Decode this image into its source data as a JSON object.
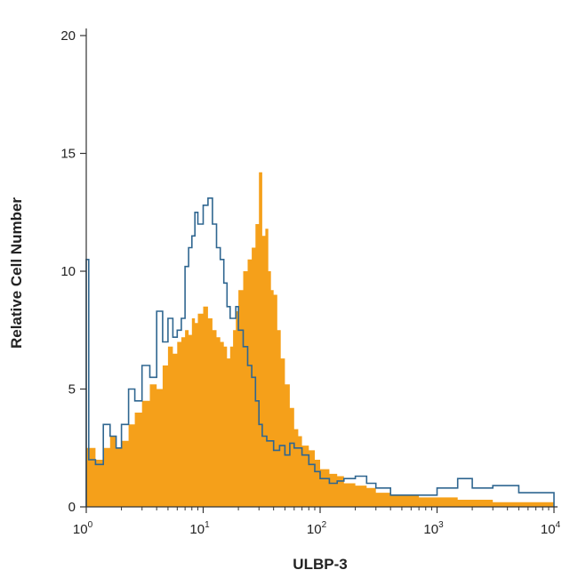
{
  "chart_data": {
    "type": "histogram",
    "xlabel": "ULBP-3",
    "ylabel": "Relative Cell Number",
    "x_scale": "log",
    "xlim": [
      1,
      10000
    ],
    "ylim": [
      0,
      20
    ],
    "x_ticks": [
      {
        "value": 1,
        "base": "10",
        "exp": "0"
      },
      {
        "value": 10,
        "base": "10",
        "exp": "1"
      },
      {
        "value": 100,
        "base": "10",
        "exp": "2"
      },
      {
        "value": 1000,
        "base": "10",
        "exp": "3"
      },
      {
        "value": 10000,
        "base": "10",
        "exp": "4"
      }
    ],
    "y_ticks": [
      {
        "value": 0,
        "label": "0"
      },
      {
        "value": 5,
        "label": "5"
      },
      {
        "value": 10,
        "label": "10"
      },
      {
        "value": 15,
        "label": "15"
      },
      {
        "value": 20,
        "label": "20"
      }
    ],
    "series": [
      {
        "style": "filled",
        "color": "#f5a01a",
        "x": [
          1,
          1.2,
          1.4,
          1.6,
          1.8,
          2,
          2.3,
          2.6,
          3,
          3.5,
          4,
          4.5,
          5,
          5.5,
          6,
          6.5,
          7,
          7.5,
          8,
          8.5,
          9,
          10,
          11,
          12,
          13,
          14,
          15,
          16,
          17,
          18,
          19,
          20,
          22,
          24,
          26,
          28,
          30,
          32,
          34,
          36,
          38,
          40,
          43,
          46,
          50,
          55,
          60,
          65,
          70,
          80,
          90,
          100,
          120,
          140,
          160,
          200,
          250,
          300,
          400,
          500,
          700,
          1000,
          1500,
          2000,
          3000,
          5000,
          10000
        ],
        "y": [
          2.5,
          2.0,
          2.5,
          3.0,
          2.5,
          2.8,
          3.5,
          4.0,
          4.5,
          5.2,
          5.0,
          6.0,
          6.8,
          6.5,
          7.0,
          7.2,
          7.5,
          7.3,
          8.0,
          7.8,
          8.2,
          8.5,
          8.0,
          7.5,
          7.2,
          7.0,
          6.8,
          6.3,
          6.8,
          7.5,
          8.3,
          9.2,
          10.0,
          10.5,
          11.0,
          12.0,
          14.2,
          11.5,
          11.8,
          10.0,
          9.2,
          9.0,
          7.5,
          6.3,
          5.2,
          4.2,
          3.3,
          3.0,
          2.6,
          2.4,
          2.0,
          1.6,
          1.4,
          1.3,
          1.0,
          0.9,
          0.8,
          0.6,
          0.5,
          0.5,
          0.4,
          0.4,
          0.3,
          0.3,
          0.2,
          0.2,
          0.2
        ]
      },
      {
        "style": "outline",
        "color": "#2f6690",
        "x": [
          1,
          1.05,
          1.2,
          1.4,
          1.6,
          1.8,
          2,
          2.3,
          2.6,
          3,
          3.5,
          4,
          4.5,
          5,
          5.5,
          6,
          6.5,
          7,
          7.5,
          8,
          8.5,
          9,
          10,
          11,
          12,
          13,
          14,
          15,
          16,
          17,
          18,
          19,
          20,
          22,
          24,
          26,
          28,
          30,
          32,
          35,
          40,
          45,
          50,
          55,
          60,
          70,
          80,
          90,
          100,
          120,
          140,
          160,
          200,
          250,
          300,
          400,
          500,
          700,
          1000,
          1500,
          2000,
          3000,
          5000,
          10000
        ],
        "y": [
          10.5,
          2.0,
          1.8,
          3.5,
          3.0,
          2.5,
          3.5,
          5.0,
          4.5,
          6.0,
          5.5,
          8.3,
          7.0,
          8.0,
          7.2,
          7.5,
          8.0,
          10.2,
          11.0,
          11.5,
          12.5,
          12.0,
          12.8,
          13.1,
          12.0,
          11.0,
          10.5,
          9.5,
          8.5,
          8.0,
          8.0,
          8.5,
          7.5,
          6.8,
          6.0,
          5.5,
          4.5,
          3.5,
          3.0,
          2.8,
          2.4,
          2.6,
          2.2,
          2.7,
          2.5,
          2.2,
          1.8,
          1.5,
          1.2,
          1.0,
          1.1,
          1.2,
          1.3,
          1.0,
          0.8,
          0.5,
          0.5,
          0.5,
          0.8,
          1.2,
          0.8,
          0.9,
          0.6,
          0.2
        ]
      }
    ]
  }
}
